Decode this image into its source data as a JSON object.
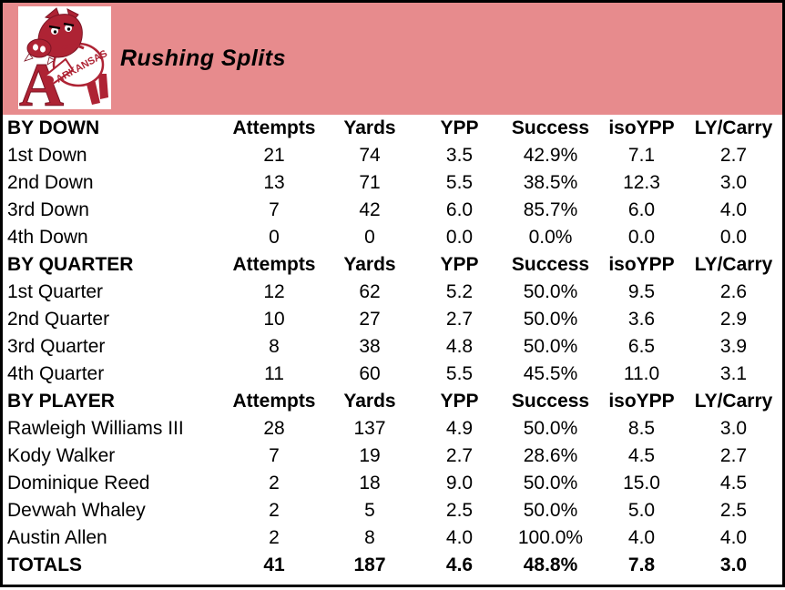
{
  "colors": {
    "band_pink": "#E78B8D",
    "razorback_red": "#AE2334",
    "border_black": "#000000"
  },
  "header": {
    "title": "Rushing Splits",
    "logo": {
      "letter": "A",
      "jersey_text": "ARKANSAS"
    }
  },
  "chart_data": {
    "type": "table",
    "title": "Rushing Splits",
    "column_headers": [
      "Attempts",
      "Yards",
      "YPP",
      "Success",
      "isoYPP",
      "LY/Carry"
    ],
    "sections": [
      {
        "label": "BY DOWN",
        "rows": [
          [
            "1st Down",
            "21",
            "74",
            "3.5",
            "42.9%",
            "7.1",
            "2.7"
          ],
          [
            "2nd Down",
            "13",
            "71",
            "5.5",
            "38.5%",
            "12.3",
            "3.0"
          ],
          [
            "3rd Down",
            "7",
            "42",
            "6.0",
            "85.7%",
            "6.0",
            "4.0"
          ],
          [
            "4th Down",
            "0",
            "0",
            "0.0",
            "0.0%",
            "0.0",
            "0.0"
          ]
        ]
      },
      {
        "label": "BY QUARTER",
        "rows": [
          [
            "1st Quarter",
            "12",
            "62",
            "5.2",
            "50.0%",
            "9.5",
            "2.6"
          ],
          [
            "2nd Quarter",
            "10",
            "27",
            "2.7",
            "50.0%",
            "3.6",
            "2.9"
          ],
          [
            "3rd Quarter",
            "8",
            "38",
            "4.8",
            "50.0%",
            "6.5",
            "3.9"
          ],
          [
            "4th Quarter",
            "11",
            "60",
            "5.5",
            "45.5%",
            "11.0",
            "3.1"
          ]
        ]
      },
      {
        "label": "BY PLAYER",
        "rows": [
          [
            "Rawleigh Williams III",
            "28",
            "137",
            "4.9",
            "50.0%",
            "8.5",
            "3.0"
          ],
          [
            "Kody Walker",
            "7",
            "19",
            "2.7",
            "28.6%",
            "4.5",
            "2.7"
          ],
          [
            "Dominique Reed",
            "2",
            "18",
            "9.0",
            "50.0%",
            "15.0",
            "4.5"
          ],
          [
            "Devwah Whaley",
            "2",
            "5",
            "2.5",
            "50.0%",
            "5.0",
            "2.5"
          ],
          [
            "Austin Allen",
            "2",
            "8",
            "4.0",
            "100.0%",
            "4.0",
            "4.0"
          ]
        ]
      }
    ],
    "totals_row": [
      "TOTALS",
      "41",
      "187",
      "4.6",
      "48.8%",
      "7.8",
      "3.0"
    ]
  }
}
